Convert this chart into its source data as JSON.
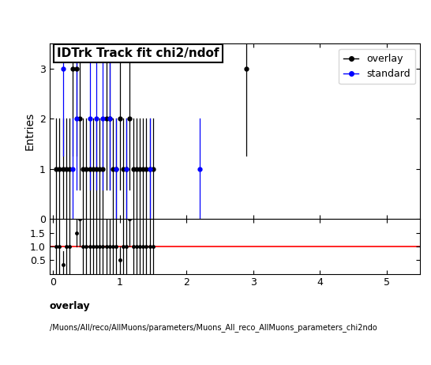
{
  "title": "IDTrk Track fit chi2/ndof",
  "ylabel_main": "Entries",
  "main_ylim": [
    0,
    3.49
  ],
  "main_yticks": [
    0,
    1,
    2,
    3
  ],
  "ratio_ylim": [
    0,
    2.0
  ],
  "ratio_yticks": [
    0.5,
    1.0,
    1.5
  ],
  "xlim": [
    -0.05,
    5.5
  ],
  "xticks": [
    0,
    1,
    2,
    3,
    4,
    5
  ],
  "footer_line1": "overlay",
  "footer_line2": "/Muons/All/reco/AllMuons/parameters/Muons_All_reco_AllMuons_parameters_chi2ndo",
  "overlay_color": "#000000",
  "standard_color": "#0000ff",
  "ratio_line_color": "#ff0000",
  "overlay_x": [
    0.05,
    0.1,
    0.15,
    0.2,
    0.25,
    0.3,
    0.35,
    0.4,
    0.45,
    0.5,
    0.55,
    0.6,
    0.65,
    0.7,
    0.75,
    0.8,
    0.85,
    0.9,
    0.95,
    1.0,
    1.05,
    1.1,
    1.15,
    1.2,
    1.25,
    1.3,
    1.35,
    1.4,
    1.45,
    1.5,
    2.9
  ],
  "overlay_y": [
    1,
    1,
    1,
    1,
    1,
    3,
    3,
    2,
    1,
    1,
    1,
    1,
    1,
    1,
    1,
    2,
    2,
    1,
    1,
    2,
    1,
    1,
    2,
    1,
    1,
    1,
    1,
    1,
    1,
    1,
    3
  ],
  "overlay_err": [
    1,
    1,
    1,
    1,
    1,
    1.73,
    1.73,
    1.41,
    1,
    1,
    1,
    1,
    1,
    1,
    1,
    1.41,
    1.41,
    1,
    1,
    1.41,
    1,
    1,
    1.41,
    1,
    1,
    1,
    1,
    1,
    1,
    1,
    1.73
  ],
  "standard_x": [
    0.15,
    0.3,
    0.35,
    0.55,
    0.65,
    0.75,
    0.85,
    0.95,
    1.1,
    1.45,
    2.2
  ],
  "standard_y": [
    3,
    1,
    2,
    2,
    2,
    2,
    2,
    1,
    1,
    1,
    1
  ],
  "standard_err": [
    1.73,
    1,
    1.41,
    1.41,
    1.41,
    1.41,
    1.41,
    1,
    1,
    1,
    1
  ],
  "ratio_x": [
    0.05,
    0.1,
    0.15,
    0.2,
    0.25,
    0.3,
    0.35,
    0.4,
    0.45,
    0.5,
    0.55,
    0.6,
    0.65,
    0.7,
    0.75,
    0.8,
    0.85,
    0.9,
    0.95,
    1.0,
    1.05,
    1.1,
    1.15,
    1.2,
    1.25,
    1.3,
    1.35,
    1.4,
    1.45,
    1.5
  ],
  "ratio_y": [
    1,
    1,
    0.33,
    1,
    1,
    3,
    1.5,
    2,
    1,
    1,
    1,
    1,
    1,
    1,
    1,
    1,
    1,
    1,
    1,
    0.5,
    1,
    1,
    2,
    1,
    1,
    1,
    1,
    1,
    1,
    1
  ],
  "ratio_err": [
    1,
    1,
    0.5,
    1,
    1,
    1,
    0.5,
    1,
    1,
    1,
    1,
    1,
    1,
    1,
    1,
    1,
    1,
    1,
    1,
    0.5,
    1,
    1,
    1,
    1,
    1,
    1,
    1,
    1,
    1,
    1
  ],
  "title_fontsize": 11,
  "tick_fontsize": 9,
  "label_fontsize": 10
}
